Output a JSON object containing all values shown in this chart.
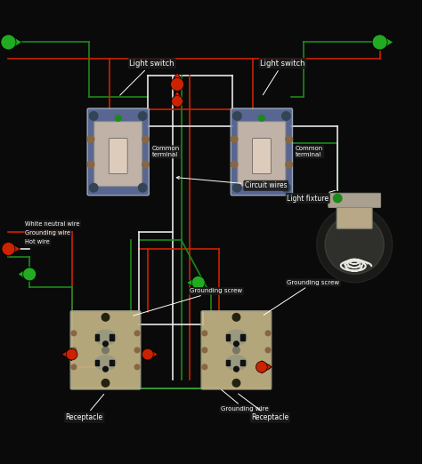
{
  "bg_color": "#0a0a0a",
  "wire_colors": {
    "red": "#cc2200",
    "white": "#e8e8e8",
    "green": "#1a8a1a"
  },
  "labels": {
    "light_switch_1": "Light switch",
    "light_switch_2": "Light switch",
    "common_terminal_1": "Common\nterminal",
    "common_terminal_2": "Common\nterminal",
    "circuit_wires": "Circuit wires",
    "white_neutral": "White neutral wire",
    "grounding_wire_label": "Grounding wire",
    "hot_wire": "Hot wire",
    "light_fixture": "Light fixture",
    "grounding_screw_1": "Grounding screw",
    "grounding_screw_2": "Grounding screw",
    "grounding_wire_bottom": "Grounding wire",
    "receptacle_1": "Receptacle",
    "receptacle_2": "Receptacle"
  },
  "label_color": "#ffffff",
  "label_bg": "#1a1a1a",
  "connector_green": "#22aa22",
  "connector_red": "#cc2200"
}
